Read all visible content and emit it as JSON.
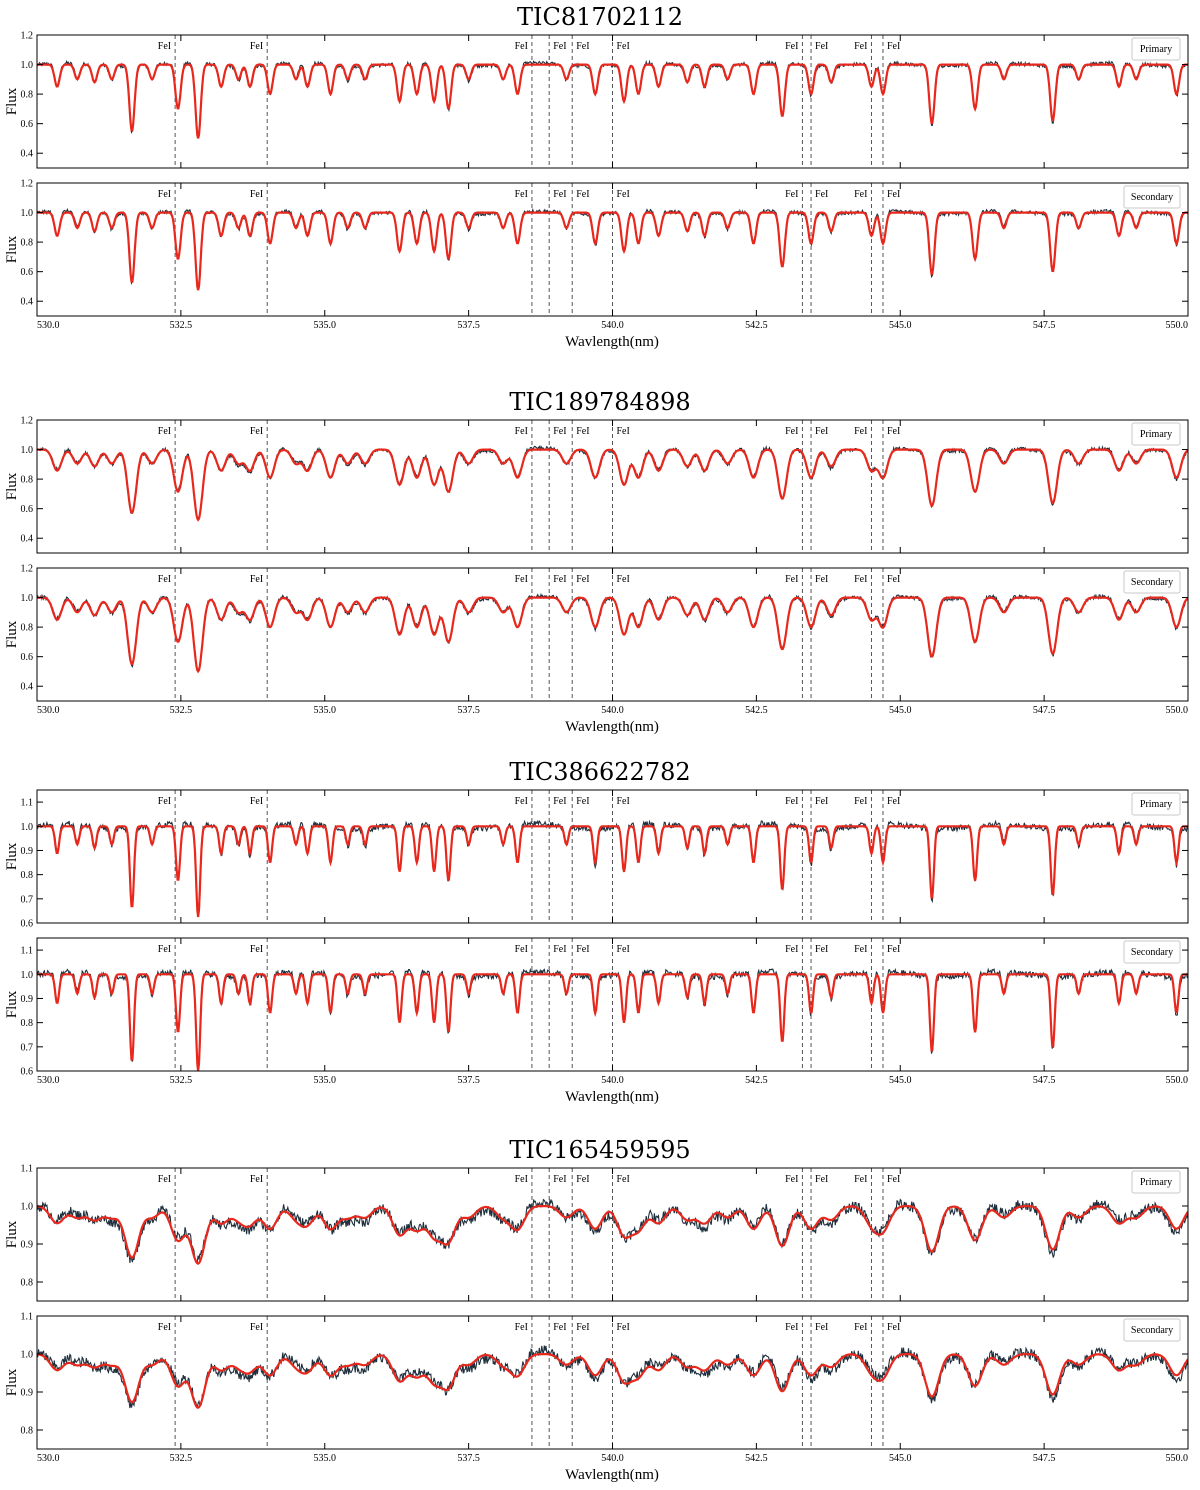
{
  "chart_data": {
    "type": "line",
    "x_range": [
      530.0,
      550.0
    ],
    "x_ticks": [
      "530.0",
      "532.5",
      "535.0",
      "537.5",
      "540.0",
      "542.5",
      "545.0",
      "547.5",
      "550.0"
    ],
    "xlabel": "Wavlength(nm)",
    "ylabel": "Flux",
    "line_label": "FeI",
    "fe_lines_nm": [
      532.4,
      534.0,
      538.6,
      538.9,
      539.3,
      540.0,
      543.3,
      543.45,
      544.5,
      544.7
    ],
    "colors": {
      "observed": "#1e2f3d",
      "model": "#e8281c",
      "guide": "#555555"
    },
    "stars": [
      {
        "title": "TIC81702112",
        "ylim": [
          0.3,
          1.2
        ],
        "y_ticks": [
          "0.4",
          "0.6",
          "0.8",
          "1.0",
          "1.2"
        ],
        "line_widths_nm": 0.045,
        "noise": 0.012,
        "panels": [
          {
            "legend": "Primary",
            "depth_scale": 1.0
          },
          {
            "legend": "Secondary",
            "depth_scale": 1.05
          }
        ]
      },
      {
        "title": "TIC189784898",
        "ylim": [
          0.3,
          1.2
        ],
        "y_ticks": [
          "0.4",
          "0.6",
          "0.8",
          "1.0",
          "1.2"
        ],
        "line_widths_nm": 0.075,
        "noise": 0.012,
        "panels": [
          {
            "legend": "Primary",
            "depth_scale": 0.95
          },
          {
            "legend": "Secondary",
            "depth_scale": 1.0
          }
        ]
      },
      {
        "title": "TIC386622782",
        "ylim": [
          0.6,
          1.15
        ],
        "y_ticks": [
          "0.6",
          "0.7",
          "0.8",
          "0.9",
          "1.0",
          "1.1"
        ],
        "line_widths_nm": 0.035,
        "noise": 0.012,
        "panels": [
          {
            "legend": "Primary",
            "depth_scale": 0.75
          },
          {
            "legend": "Secondary",
            "depth_scale": 0.8
          }
        ]
      },
      {
        "title": "TIC165459595",
        "ylim": [
          0.75,
          1.1
        ],
        "y_ticks": [
          "0.8",
          "0.9",
          "1.0",
          "1.1"
        ],
        "line_widths_nm": 0.12,
        "noise": 0.014,
        "panels": [
          {
            "legend": "Primary",
            "depth_scale": 0.3
          },
          {
            "legend": "Secondary",
            "depth_scale": 0.28
          }
        ]
      }
    ],
    "absorption_lines": [
      {
        "c": 530.35,
        "d": 0.15
      },
      {
        "c": 530.7,
        "d": 0.1
      },
      {
        "c": 531.0,
        "d": 0.12
      },
      {
        "c": 531.3,
        "d": 0.1
      },
      {
        "c": 531.65,
        "d": 0.45
      },
      {
        "c": 532.0,
        "d": 0.1
      },
      {
        "c": 532.45,
        "d": 0.3
      },
      {
        "c": 532.8,
        "d": 0.5
      },
      {
        "c": 533.2,
        "d": 0.15
      },
      {
        "c": 533.5,
        "d": 0.1
      },
      {
        "c": 533.7,
        "d": 0.15
      },
      {
        "c": 534.05,
        "d": 0.2
      },
      {
        "c": 534.5,
        "d": 0.1
      },
      {
        "c": 534.7,
        "d": 0.15
      },
      {
        "c": 535.1,
        "d": 0.2
      },
      {
        "c": 535.4,
        "d": 0.1
      },
      {
        "c": 535.7,
        "d": 0.1
      },
      {
        "c": 536.3,
        "d": 0.25
      },
      {
        "c": 536.6,
        "d": 0.2
      },
      {
        "c": 536.9,
        "d": 0.25
      },
      {
        "c": 537.15,
        "d": 0.3
      },
      {
        "c": 537.5,
        "d": 0.1
      },
      {
        "c": 538.1,
        "d": 0.1
      },
      {
        "c": 538.35,
        "d": 0.2
      },
      {
        "c": 539.2,
        "d": 0.1
      },
      {
        "c": 539.7,
        "d": 0.2
      },
      {
        "c": 540.2,
        "d": 0.25
      },
      {
        "c": 540.45,
        "d": 0.2
      },
      {
        "c": 540.8,
        "d": 0.15
      },
      {
        "c": 541.3,
        "d": 0.12
      },
      {
        "c": 541.6,
        "d": 0.15
      },
      {
        "c": 542.0,
        "d": 0.1
      },
      {
        "c": 542.45,
        "d": 0.2
      },
      {
        "c": 542.95,
        "d": 0.35
      },
      {
        "c": 543.45,
        "d": 0.2
      },
      {
        "c": 543.8,
        "d": 0.12
      },
      {
        "c": 544.5,
        "d": 0.15
      },
      {
        "c": 544.7,
        "d": 0.2
      },
      {
        "c": 545.55,
        "d": 0.4
      },
      {
        "c": 546.3,
        "d": 0.3
      },
      {
        "c": 546.8,
        "d": 0.1
      },
      {
        "c": 547.65,
        "d": 0.38
      },
      {
        "c": 548.1,
        "d": 0.1
      },
      {
        "c": 548.8,
        "d": 0.15
      },
      {
        "c": 549.1,
        "d": 0.1
      },
      {
        "c": 549.8,
        "d": 0.2
      }
    ]
  }
}
